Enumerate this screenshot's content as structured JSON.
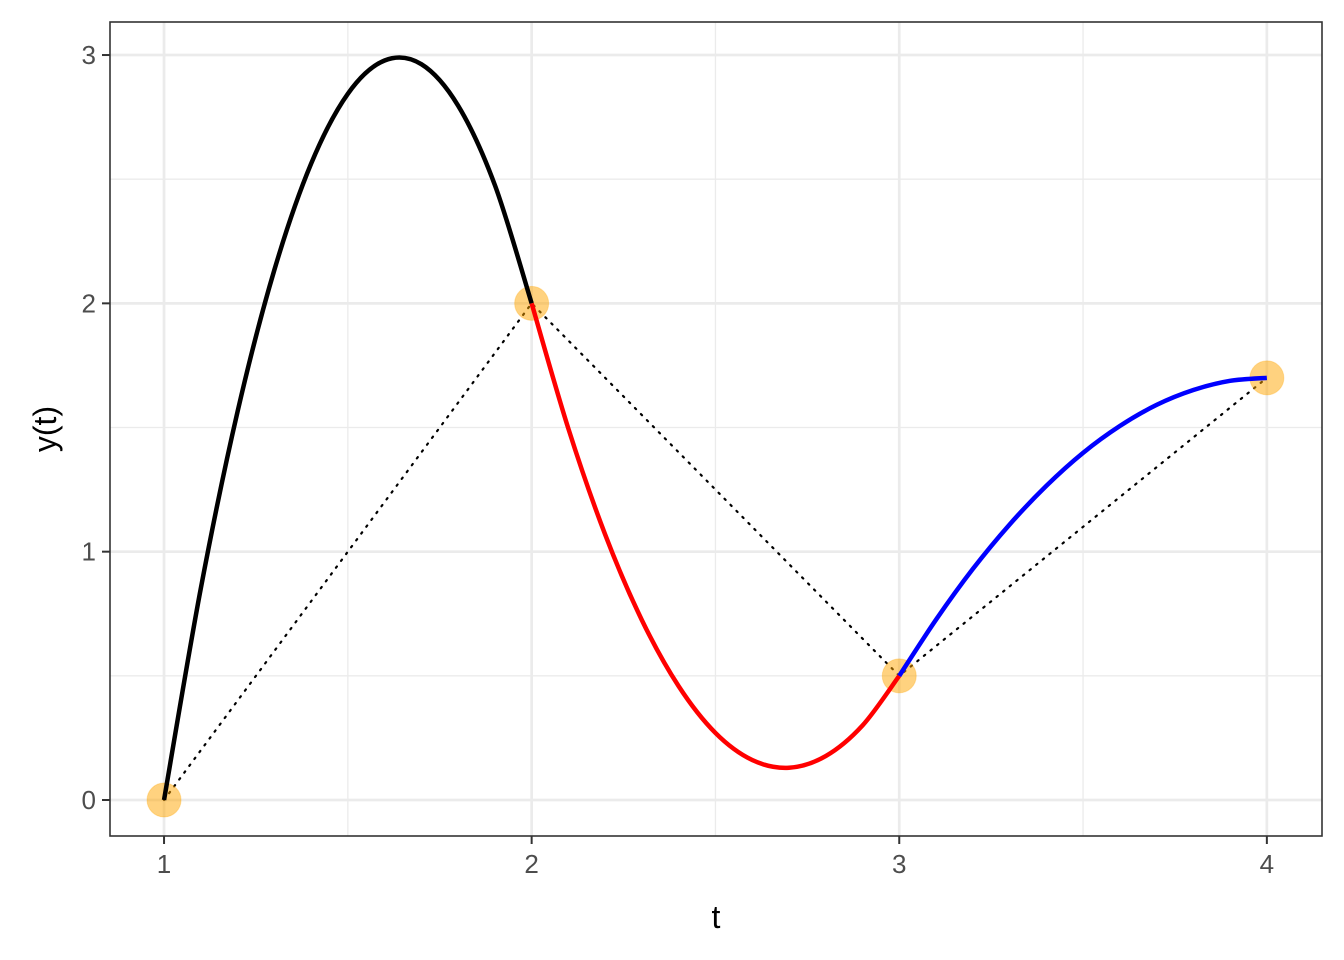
{
  "chart_data": {
    "type": "line",
    "title": "",
    "xlabel": "t",
    "ylabel": "y(t)",
    "xlim": [
      0.853,
      4.15
    ],
    "ylim": [
      -0.145,
      3.133
    ],
    "xticks": [
      1,
      2,
      3,
      4
    ],
    "yticks": [
      0,
      1,
      2,
      3
    ],
    "grid": true,
    "knots": {
      "t": [
        1,
        2,
        3,
        4
      ],
      "y": [
        0,
        2,
        0.5,
        1.7
      ],
      "color": "#FFA500",
      "alpha": 0.5
    },
    "connector": {
      "style": "dotted",
      "color": "#000000"
    },
    "series": [
      {
        "color": "#000000",
        "t": [
          1,
          1.1,
          1.2,
          1.3,
          1.4,
          1.5,
          1.6,
          1.7,
          1.8,
          1.9,
          2
        ],
        "y": [
          0,
          0.852,
          1.564,
          2.134,
          2.562,
          2.844,
          2.978,
          2.963,
          2.796,
          2.476,
          2
        ]
      },
      {
        "color": "#FF0000",
        "t": [
          2,
          2.1,
          2.2,
          2.3,
          2.4,
          2.5,
          2.6,
          2.7,
          2.8,
          2.9,
          3
        ],
        "y": [
          2,
          1.495,
          1.069,
          0.724,
          0.458,
          0.27,
          0.161,
          0.13,
          0.177,
          0.3,
          0.5
        ]
      },
      {
        "color": "#0000FF",
        "t": [
          3,
          3.1,
          3.2,
          3.3,
          3.4,
          3.5,
          3.6,
          3.7,
          3.8,
          3.9,
          4
        ],
        "y": [
          0.5,
          0.726,
          0.93,
          1.109,
          1.265,
          1.398,
          1.506,
          1.591,
          1.651,
          1.688,
          1.7
        ]
      }
    ]
  }
}
